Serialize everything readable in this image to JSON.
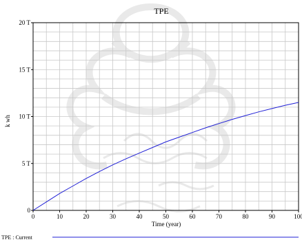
{
  "chart_data": {
    "type": "line",
    "title": "TPE",
    "xlabel": "Time (year)",
    "ylabel": "k wh",
    "xlim": [
      0,
      100
    ],
    "ylim": [
      0,
      20
    ],
    "x_ticks": [
      "0",
      "10",
      "20",
      "30",
      "40",
      "50",
      "60",
      "70",
      "80",
      "90",
      "100"
    ],
    "y_ticks": [
      "0",
      "5 T",
      "10 T",
      "15 T",
      "20 T"
    ],
    "grid": true,
    "legend_position": "bottom-left",
    "colors": {
      "line": "#1f1fd6",
      "grid": "#c8c8c8",
      "axis": "#000000"
    },
    "series": [
      {
        "name": "TPE : Current",
        "x": [
          0,
          5,
          10,
          15,
          20,
          25,
          30,
          35,
          40,
          45,
          50,
          55,
          60,
          65,
          70,
          75,
          80,
          85,
          90,
          95,
          100
        ],
        "y": [
          0,
          0.9,
          1.8,
          2.6,
          3.4,
          4.15,
          4.85,
          5.5,
          6.1,
          6.7,
          7.3,
          7.8,
          8.3,
          8.8,
          9.25,
          9.7,
          10.1,
          10.5,
          10.85,
          11.2,
          11.5
        ]
      }
    ]
  }
}
